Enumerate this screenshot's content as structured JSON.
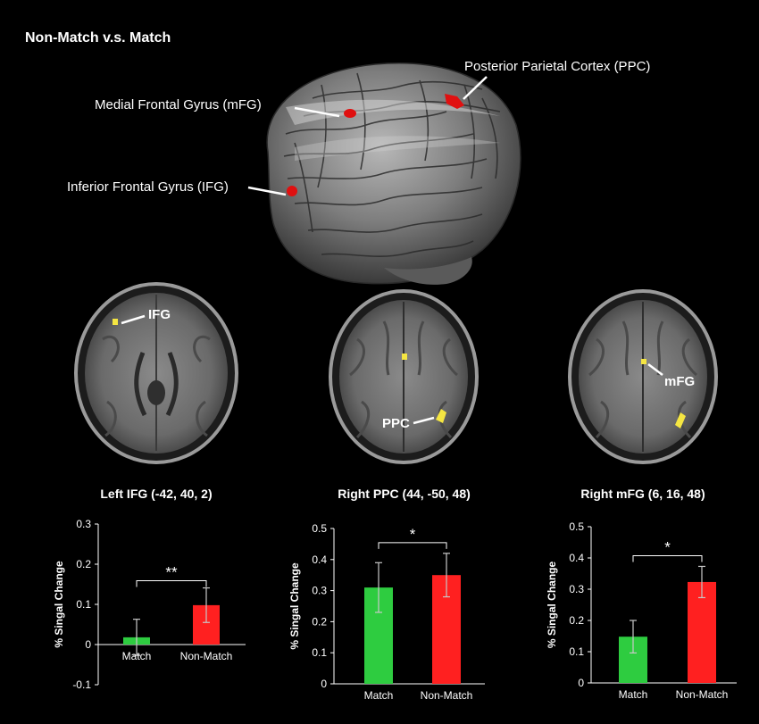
{
  "figure": {
    "title": "Non-Match v.s. Match",
    "brain_labels": {
      "ppc": "Posterior Parietal Cortex (PPC)",
      "mfg": "Medial Frontal Gyrus (mFG)",
      "ifg": "Inferior Frontal Gyrus (IFG)"
    },
    "slice_labels": {
      "ifg": "IFG",
      "ppc": "PPC",
      "mfg": "mFG"
    }
  },
  "colors": {
    "match": "#2ecc40",
    "nonmatch": "#ff2020",
    "activation_red": "#e01010",
    "activation_yellow": "#f5e642"
  },
  "chart_data": [
    {
      "type": "bar",
      "title": "Left IFG (-42, 40, 2)",
      "categories": [
        "Match",
        "Non-Match"
      ],
      "values": [
        0.018,
        0.098
      ],
      "errors": [
        0.045,
        0.043
      ],
      "ylabel": "% Singal Change",
      "ylim": [
        -0.1,
        0.3
      ],
      "yticks": [
        "-0.1",
        "0",
        "0.1",
        "0.2",
        "0.3"
      ],
      "significance": "**"
    },
    {
      "type": "bar",
      "title": "Right PPC (44, -50, 48)",
      "categories": [
        "Match",
        "Non-Match"
      ],
      "values": [
        0.31,
        0.35
      ],
      "errors": [
        0.08,
        0.07
      ],
      "ylabel": "% Singal Change",
      "ylim": [
        0,
        0.5
      ],
      "yticks": [
        "0",
        "0.1",
        "0.2",
        "0.3",
        "0.4",
        "0.5"
      ],
      "significance": "*"
    },
    {
      "type": "bar",
      "title": "Right mFG (6, 16, 48)",
      "categories": [
        "Match",
        "Non-Match"
      ],
      "values": [
        0.148,
        0.323
      ],
      "errors": [
        0.052,
        0.05
      ],
      "ylabel": "% Singal Change",
      "ylim": [
        0,
        0.5
      ],
      "yticks": [
        "0",
        "0.1",
        "0.2",
        "0.3",
        "0.4",
        "0.5"
      ],
      "significance": "*"
    }
  ]
}
